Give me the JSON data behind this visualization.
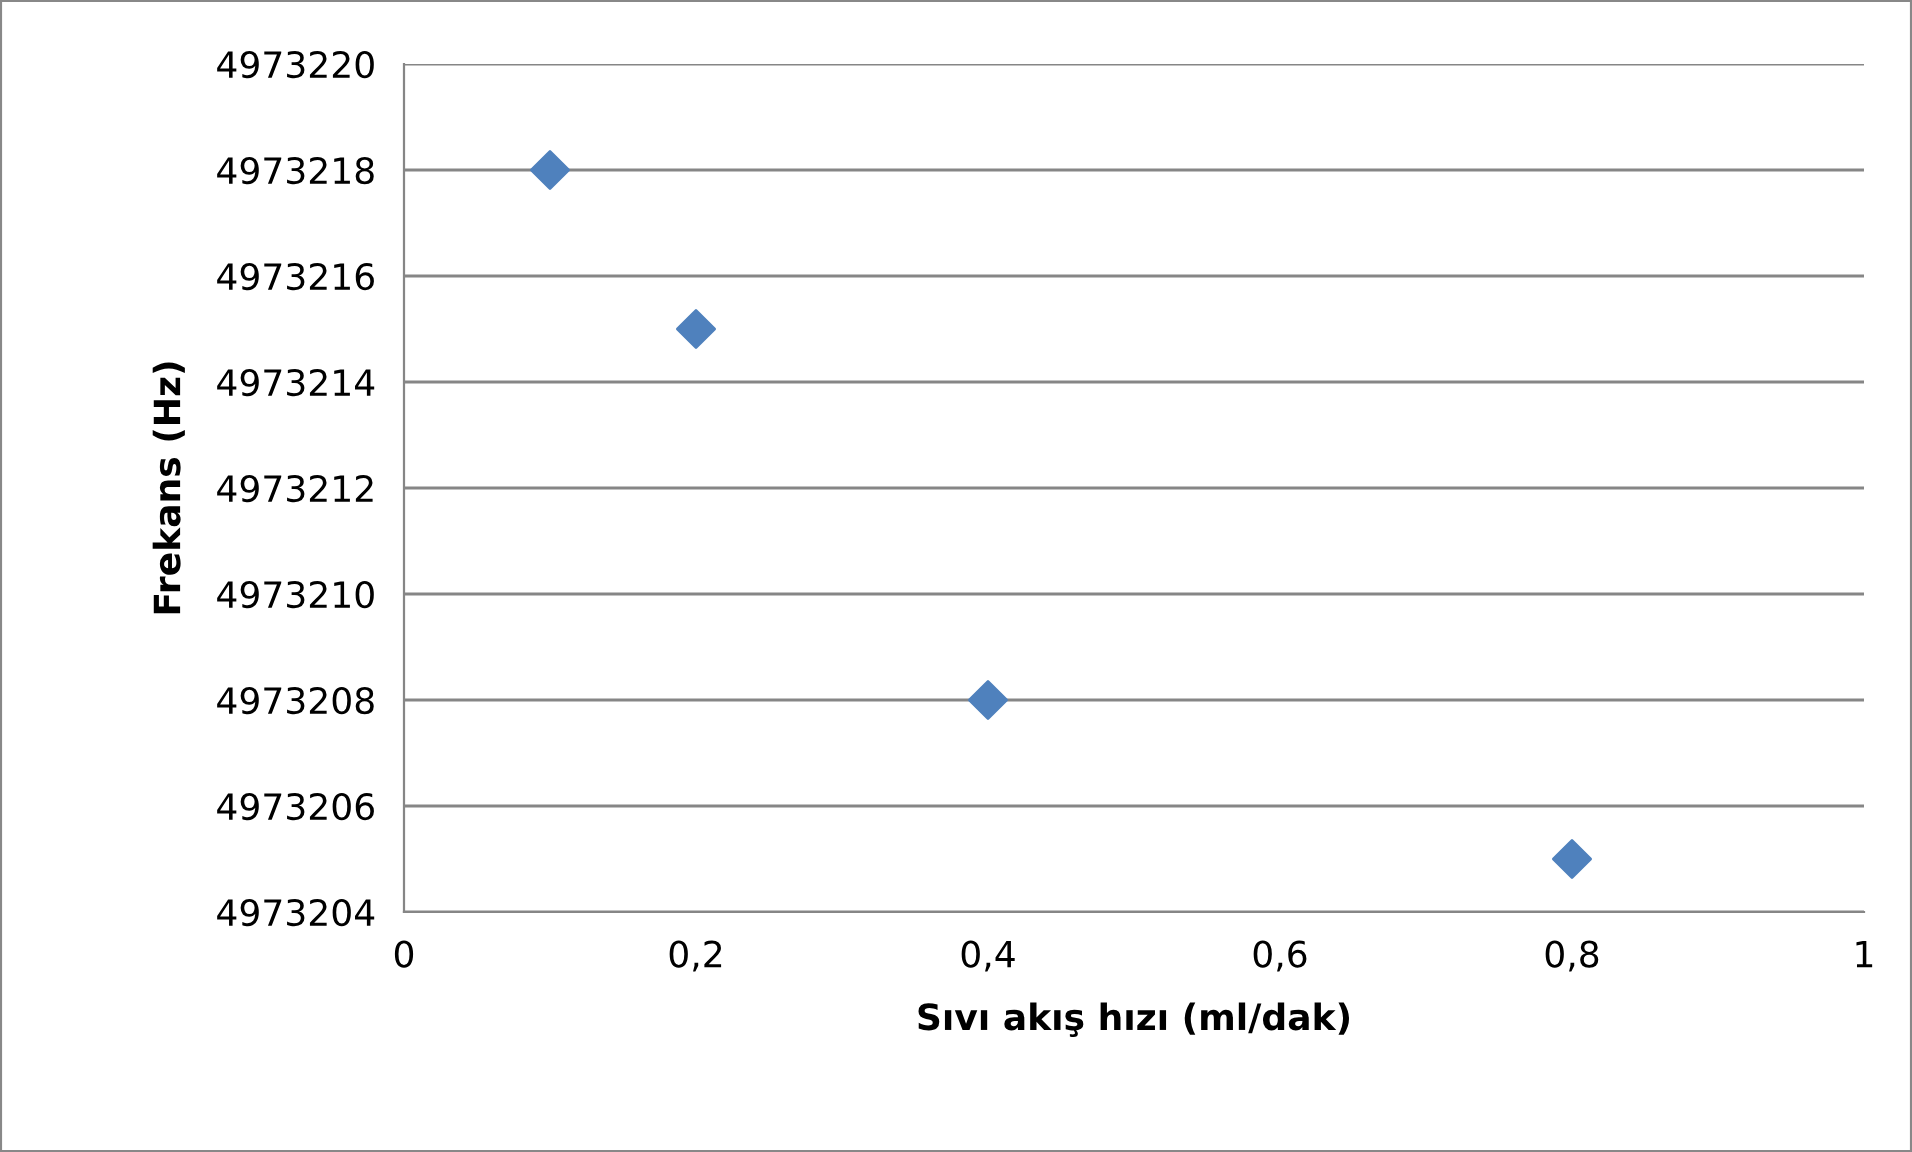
{
  "chart_data": {
    "type": "scatter",
    "xlabel": "Sıvı akış hızı (ml/dak)",
    "ylabel": "Frekans (Hz)",
    "x": [
      0.1,
      0.2,
      0.4,
      0.8
    ],
    "series": [
      {
        "color": "#4f81bd",
        "values": [
          4973218,
          4973215,
          4973208,
          4973205
        ]
      }
    ],
    "xlim": [
      0,
      1
    ],
    "xticks": [
      0,
      {
        "value": 0.2,
        "label": "0,2"
      },
      {
        "value": 0.4,
        "label": "0,4"
      },
      {
        "value": 0.6,
        "label": "0,6"
      },
      {
        "value": 0.8,
        "label": "0,8"
      },
      1
    ],
    "ylim": [
      4973204,
      4973220
    ],
    "yticks": [
      4973204,
      4973206,
      4973208,
      4973210,
      4973212,
      4973214,
      4973216,
      4973218,
      4973220
    ],
    "grid": "y",
    "marker": "diamond",
    "legend": false
  }
}
